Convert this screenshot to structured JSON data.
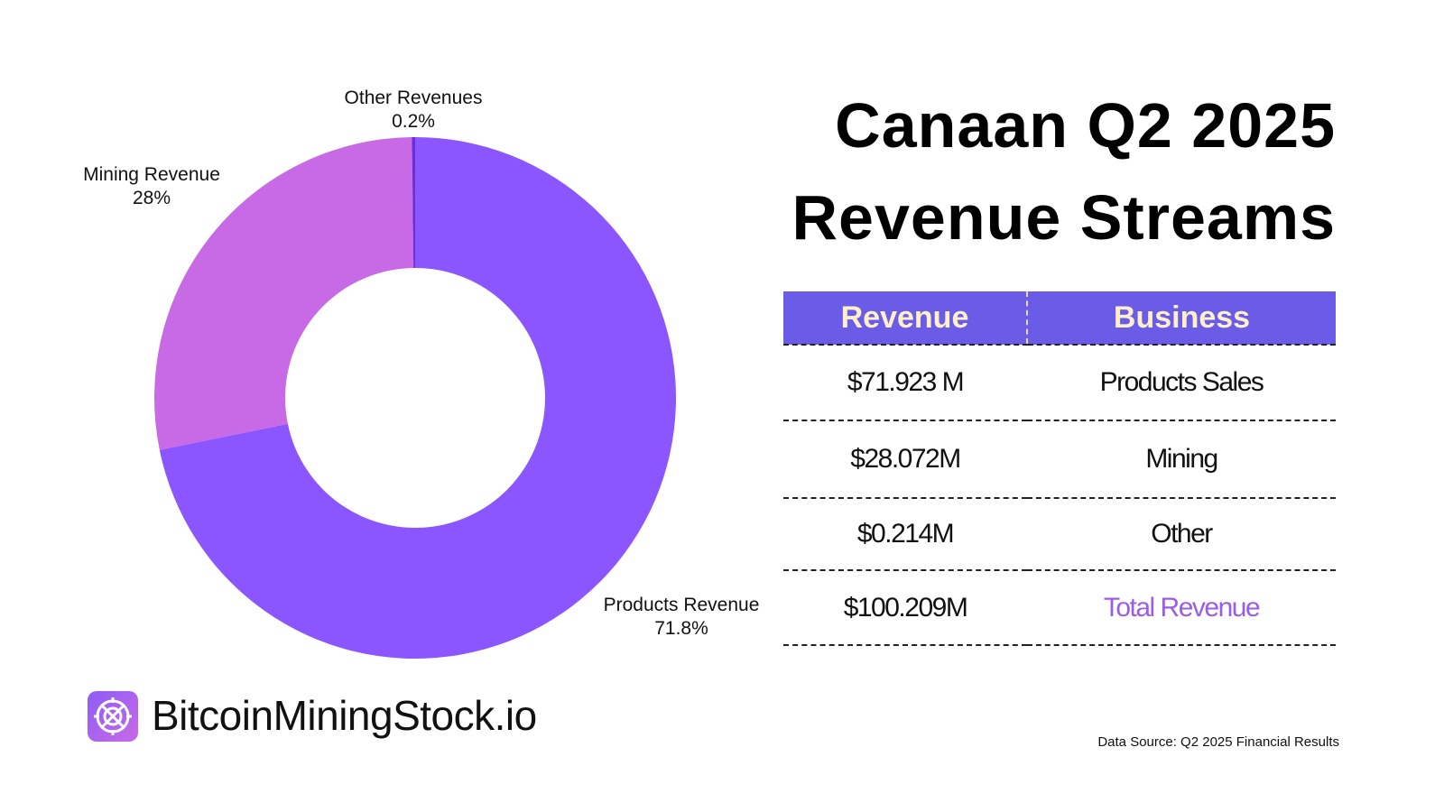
{
  "chart_data": {
    "type": "donut",
    "categories": [
      "Products Revenue",
      "Mining Revenue",
      "Other Revenues"
    ],
    "values": [
      71.8,
      28,
      0.2
    ],
    "value_labels": [
      "71.8%",
      "28%",
      "0.2%"
    ],
    "colors": [
      "#8b55ff",
      "#c86ae6",
      "#6a2fd8"
    ]
  },
  "header": {
    "title": "Canaan Q2 2025 Revenue Streams"
  },
  "table": {
    "columns": [
      "Revenue",
      "Business"
    ],
    "rows": [
      [
        "$71.923 M",
        "Products Sales"
      ],
      [
        "$28.072M",
        "Mining"
      ],
      [
        "$0.214M",
        "Other"
      ],
      [
        "$100.209M",
        "Total Revenue"
      ]
    ]
  },
  "brand": "BitcoinMiningStock.io",
  "source": "Data Source: Q2 2025 Financial Results"
}
